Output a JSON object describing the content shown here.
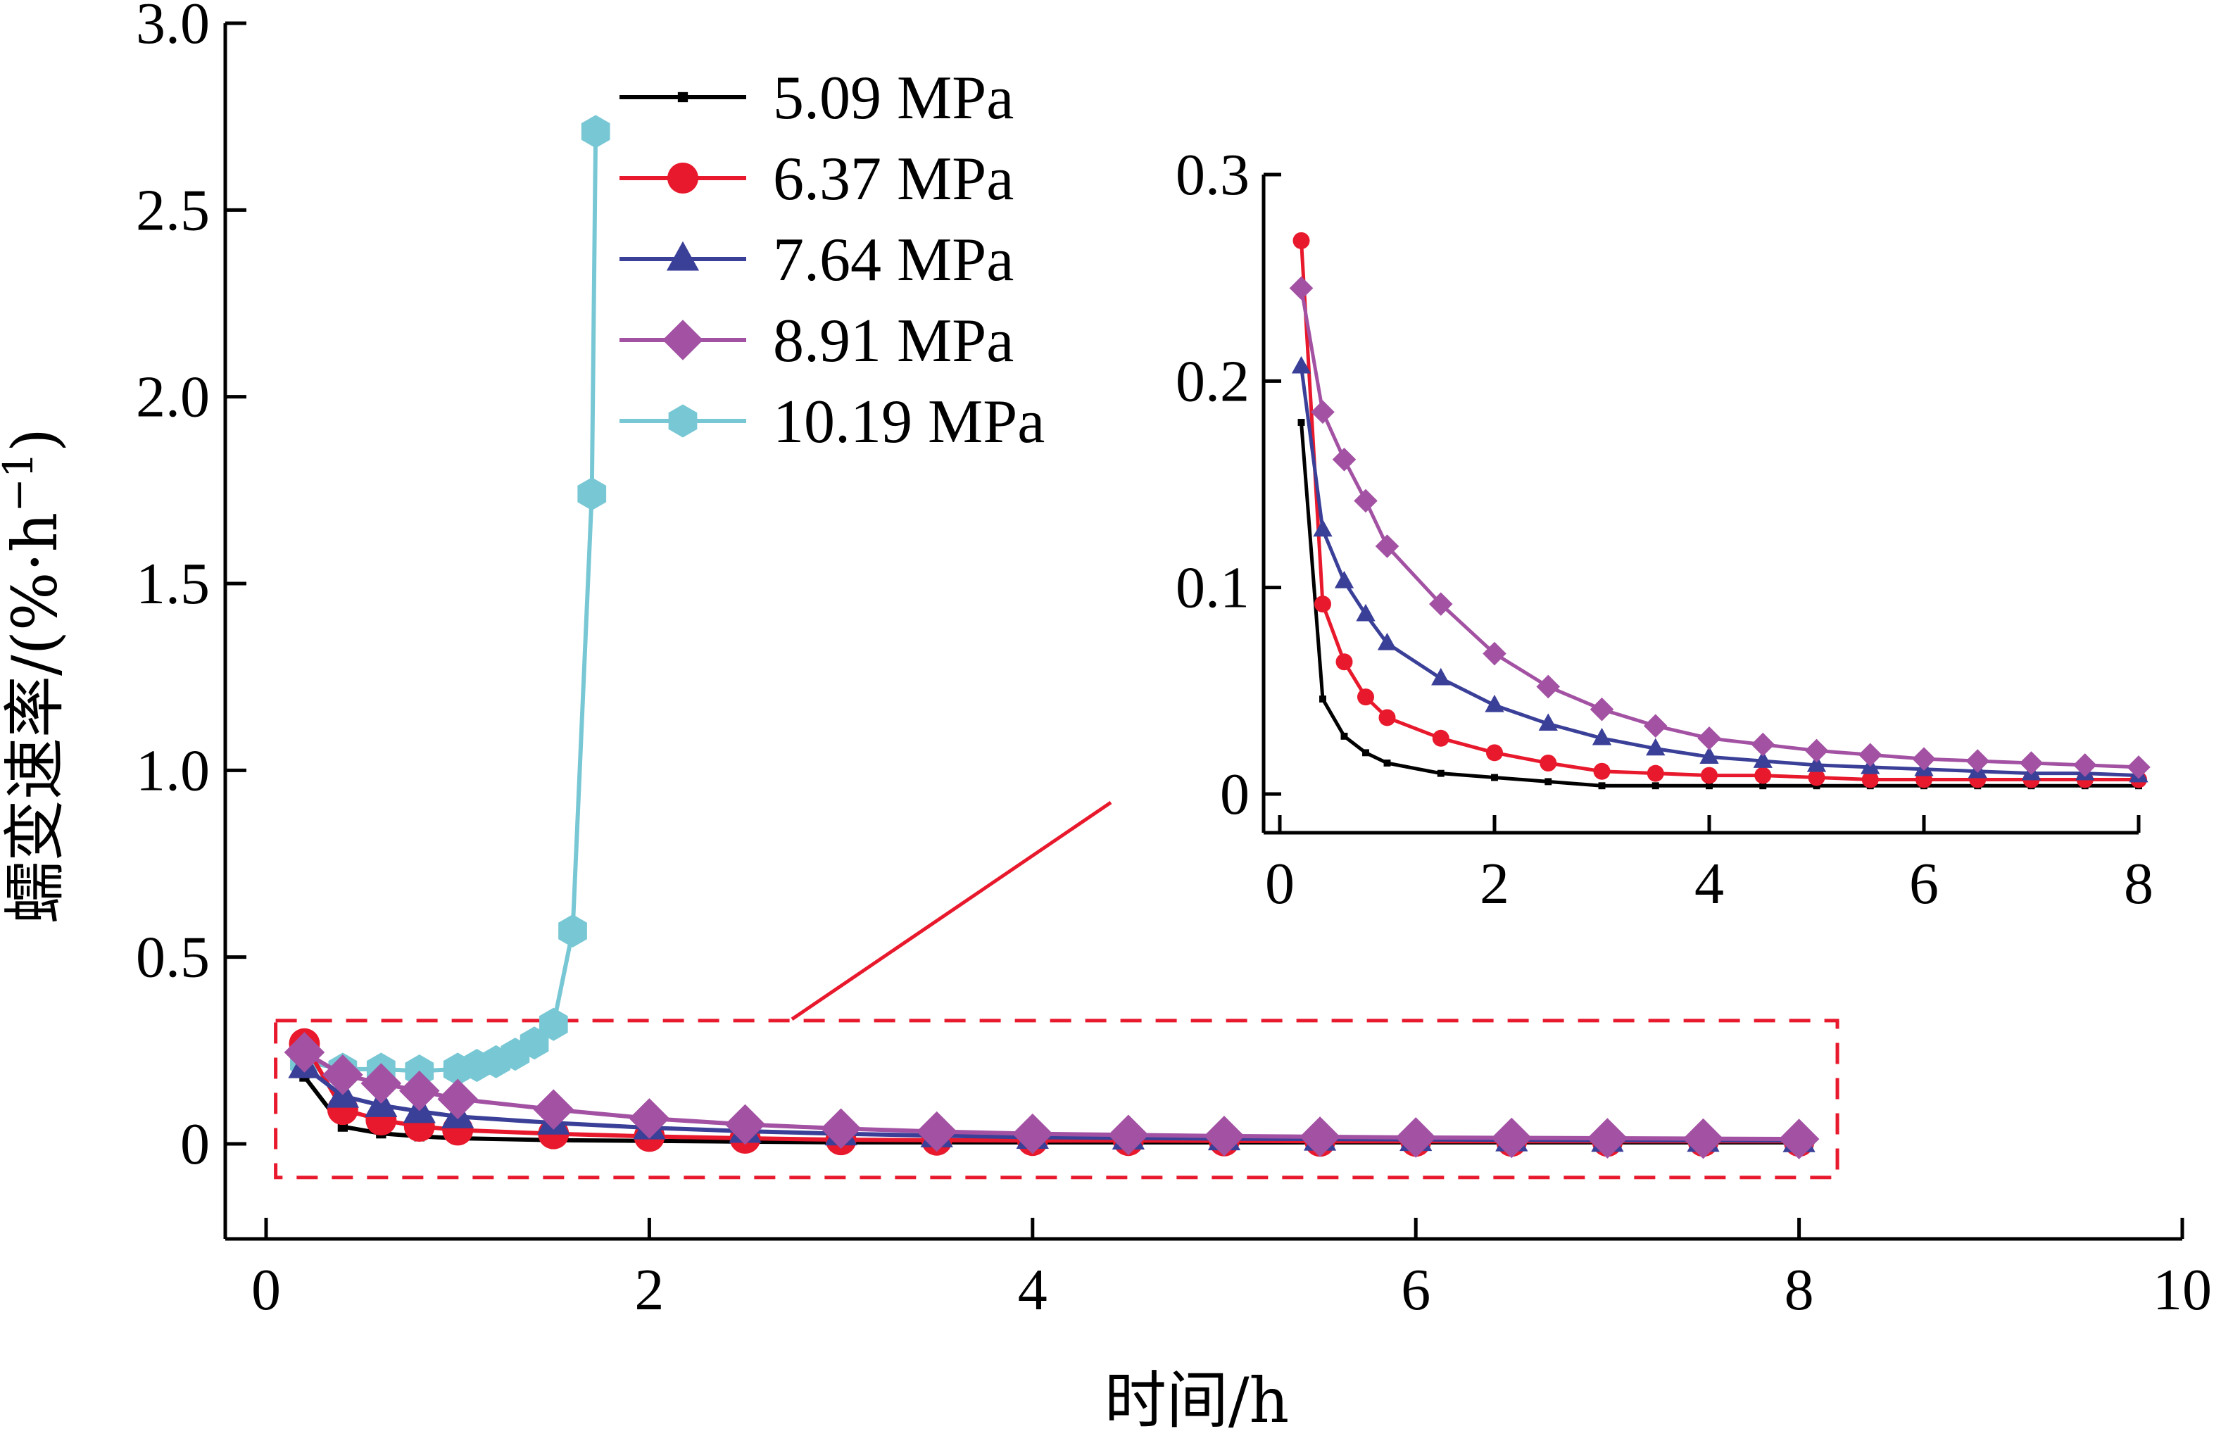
{
  "chart_data": [
    {
      "type": "line",
      "name": "main",
      "xlabel": "时间/h",
      "ylabel": "蠕变速率/(%·h",
      "ylabel_sup": "−1",
      "ylabel_close": ")",
      "xlim": [
        0,
        10
      ],
      "ylim": [
        -0.25,
        3.0
      ],
      "xticks": [
        "0",
        "2",
        "4",
        "6",
        "8",
        "10"
      ],
      "yticks": [
        "0",
        "0.5",
        "1.0",
        "1.5",
        "2.0",
        "2.5",
        "3.0"
      ],
      "legend_position": "top-center",
      "series": [
        {
          "name": "5.09 MPa",
          "color": "#000000",
          "marker": "square",
          "x": [
            0.2,
            0.4,
            0.6,
            0.8,
            1.0,
            1.5,
            2.0,
            2.5,
            3.0,
            3.5,
            4.0,
            4.5,
            5.0,
            5.5,
            6.0,
            6.5,
            7.0,
            7.5,
            8.0
          ],
          "y": [
            0.18,
            0.046,
            0.028,
            0.02,
            0.015,
            0.01,
            0.008,
            0.006,
            0.004,
            0.004,
            0.004,
            0.004,
            0.004,
            0.004,
            0.004,
            0.004,
            0.004,
            0.004,
            0.004
          ]
        },
        {
          "name": "6.37 MPa",
          "color": "#e8192c",
          "marker": "circle",
          "x": [
            0.2,
            0.4,
            0.6,
            0.8,
            1.0,
            1.5,
            2.0,
            2.5,
            3.0,
            3.5,
            4.0,
            4.5,
            5.0,
            5.5,
            6.0,
            6.5,
            7.0,
            7.5,
            8.0
          ],
          "y": [
            0.268,
            0.092,
            0.064,
            0.047,
            0.037,
            0.027,
            0.02,
            0.015,
            0.011,
            0.01,
            0.009,
            0.009,
            0.008,
            0.007,
            0.007,
            0.007,
            0.007,
            0.007,
            0.007
          ]
        },
        {
          "name": "7.64 MPa",
          "color": "#3a3f98",
          "marker": "triangle",
          "x": [
            0.2,
            0.4,
            0.6,
            0.8,
            1.0,
            1.5,
            2.0,
            2.5,
            3.0,
            3.5,
            4.0,
            4.5,
            5.0,
            5.5,
            6.0,
            6.5,
            7.0,
            7.5,
            8.0
          ],
          "y": [
            0.207,
            0.128,
            0.103,
            0.087,
            0.073,
            0.056,
            0.043,
            0.034,
            0.027,
            0.022,
            0.018,
            0.016,
            0.014,
            0.013,
            0.012,
            0.011,
            0.01,
            0.01,
            0.009
          ]
        },
        {
          "name": "8.91 MPa",
          "color": "#a352a3",
          "marker": "diamond",
          "x": [
            0.2,
            0.4,
            0.6,
            0.8,
            1.0,
            1.5,
            2.0,
            2.5,
            3.0,
            3.5,
            4.0,
            4.5,
            5.0,
            5.5,
            6.0,
            6.5,
            7.0,
            7.5,
            8.0
          ],
          "y": [
            0.245,
            0.185,
            0.162,
            0.142,
            0.12,
            0.092,
            0.068,
            0.052,
            0.041,
            0.033,
            0.027,
            0.024,
            0.021,
            0.019,
            0.017,
            0.016,
            0.015,
            0.014,
            0.013
          ]
        },
        {
          "name": "10.19 MPa",
          "color": "#78c7d4",
          "marker": "hexagon",
          "x": [
            0.2,
            0.4,
            0.6,
            0.8,
            1.0,
            1.1,
            1.2,
            1.3,
            1.4,
            1.5,
            1.6,
            1.7,
            1.72
          ],
          "y": [
            0.22,
            0.2,
            0.2,
            0.195,
            0.2,
            0.21,
            0.22,
            0.24,
            0.27,
            0.32,
            0.57,
            1.74,
            2.71
          ]
        }
      ]
    },
    {
      "type": "line",
      "name": "inset",
      "xlim": [
        -0.1,
        8.0
      ],
      "ylim": [
        -0.018,
        0.3
      ],
      "xticks": [
        "0",
        "2",
        "4",
        "6",
        "8"
      ],
      "yticks": [
        "0",
        "0.1",
        "0.2",
        "0.3"
      ],
      "zoom_region": {
        "x": [
          0.05,
          8.2
        ],
        "y": [
          -0.09,
          0.33
        ]
      }
    }
  ],
  "colors": {
    "zoom_box": "#e8192c",
    "axis": "#000000"
  }
}
